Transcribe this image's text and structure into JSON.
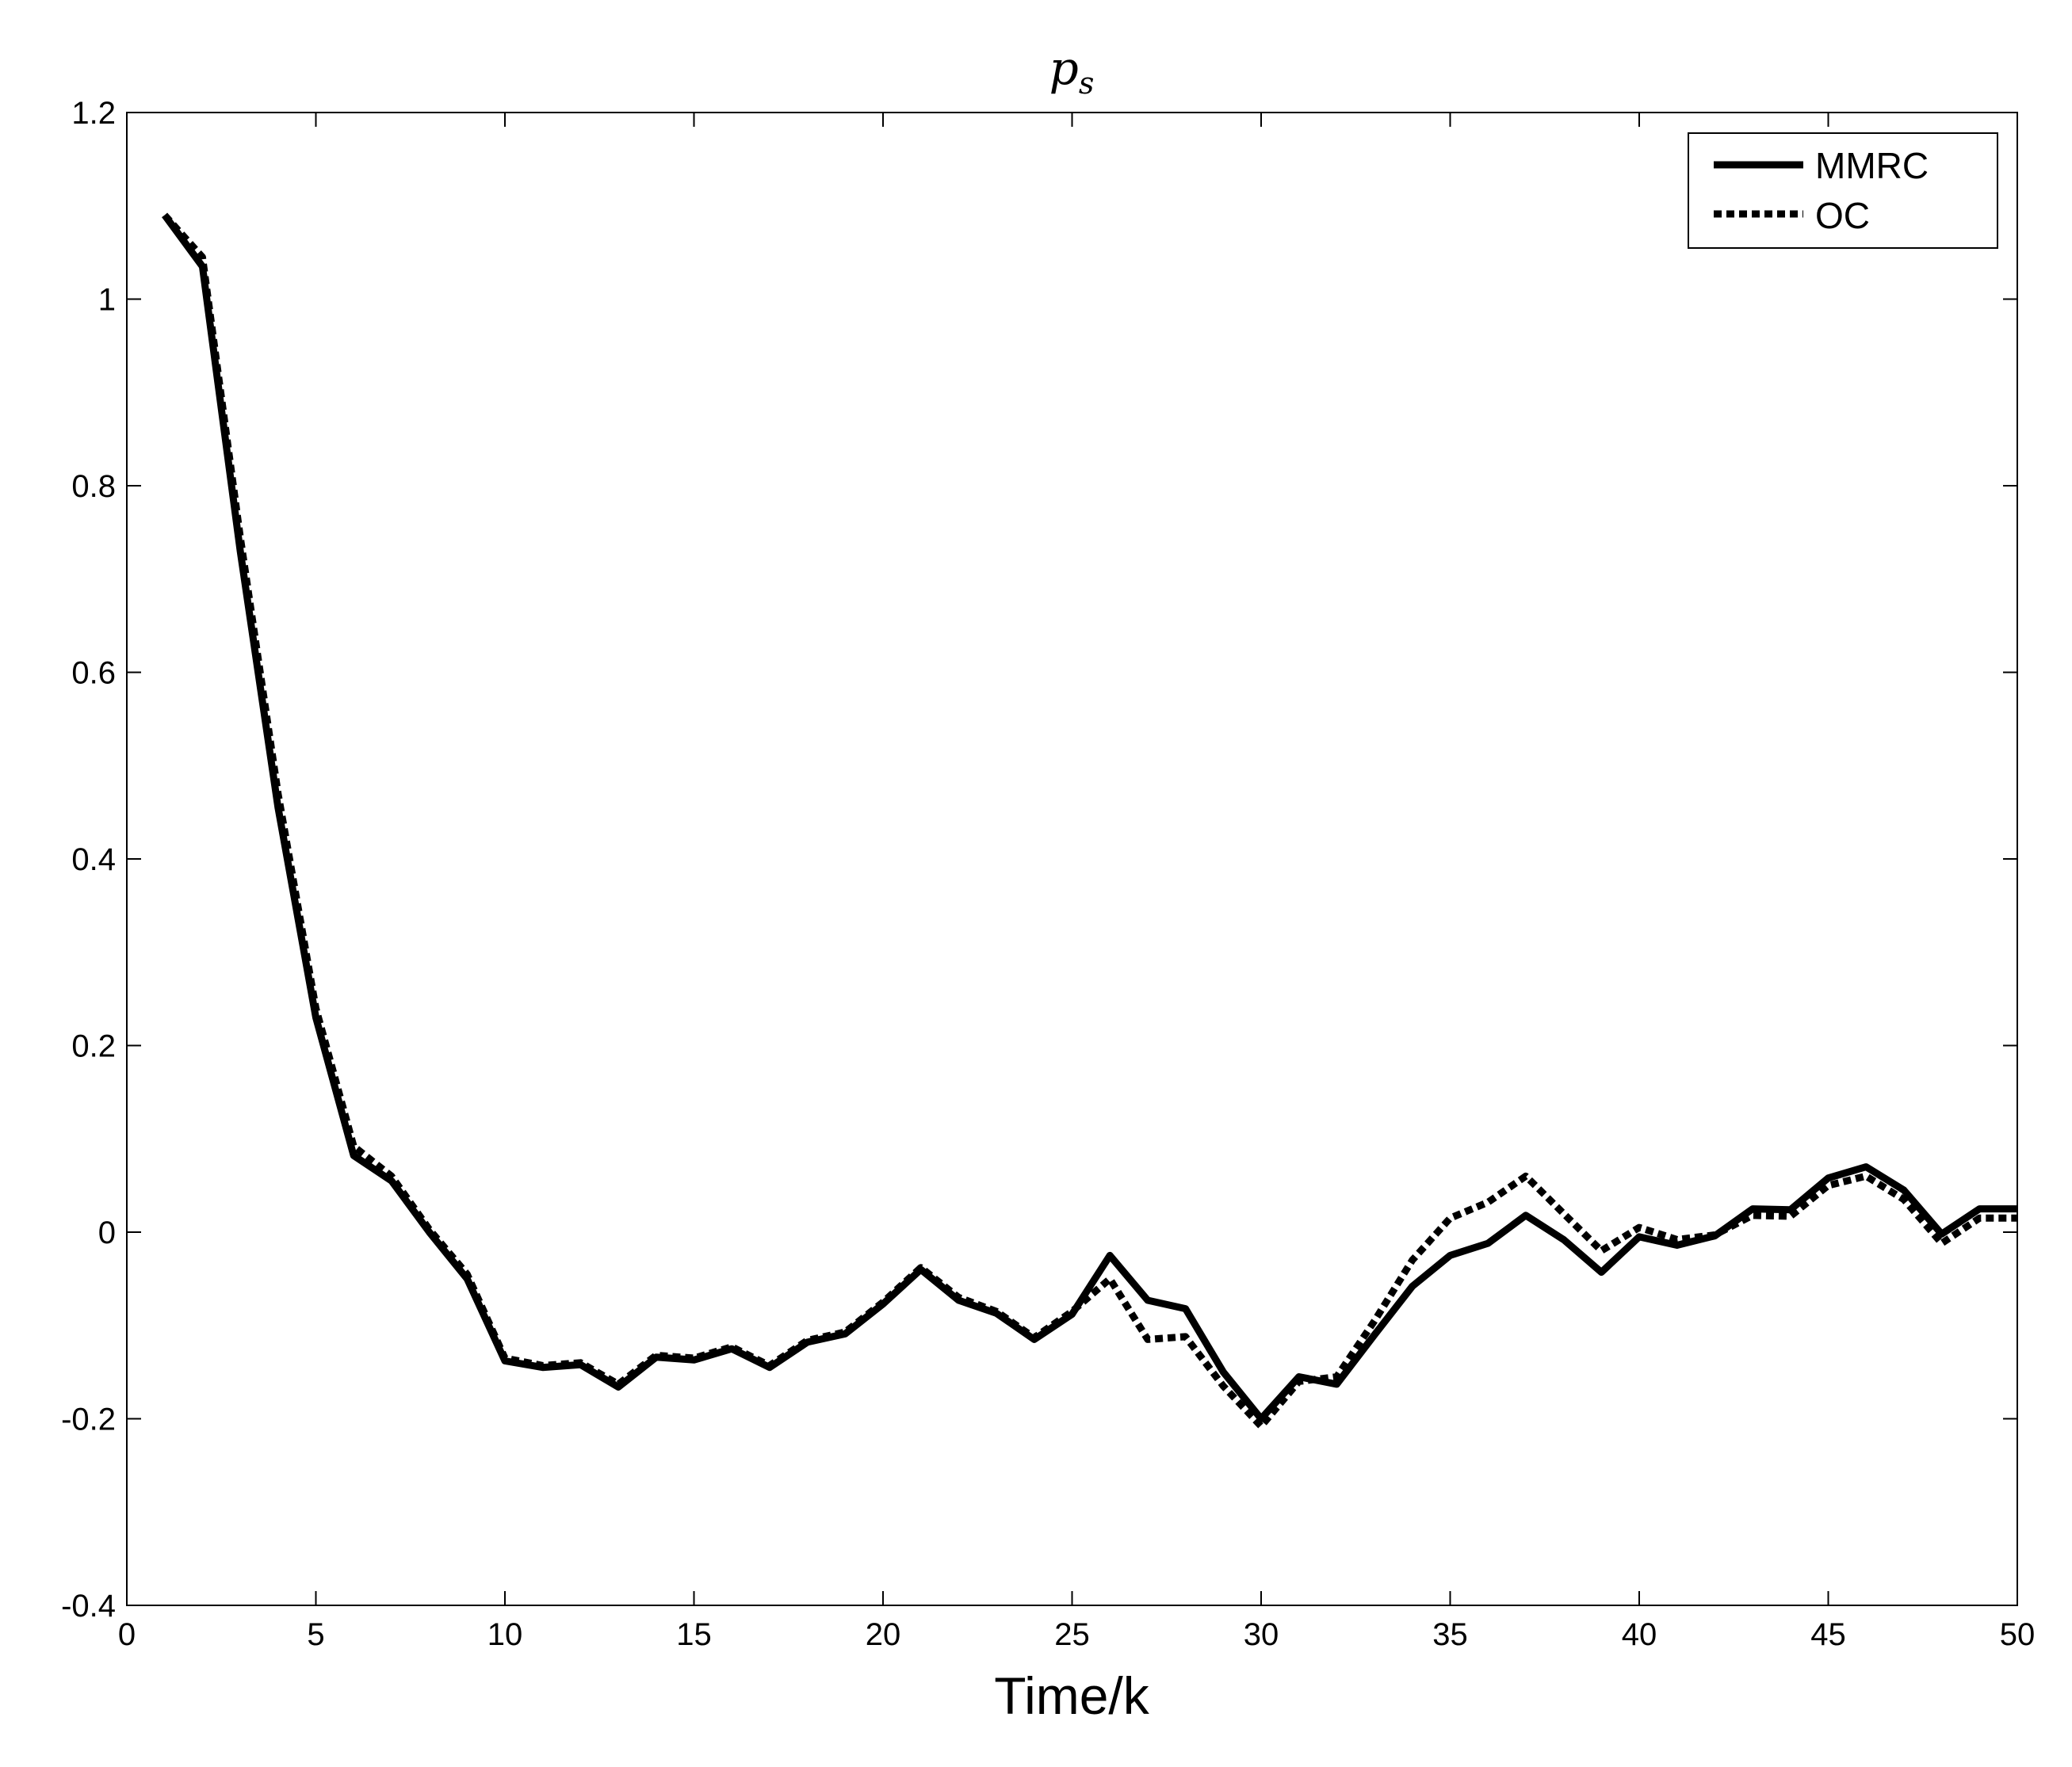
{
  "chart_data": {
    "type": "line",
    "title_main": "p",
    "title_sub": "s",
    "xlabel": "Time/k",
    "ylabel": "",
    "xlim": [
      0,
      50
    ],
    "ylim": [
      -0.4,
      1.2
    ],
    "xticks": [
      0,
      5,
      10,
      15,
      20,
      25,
      30,
      35,
      40,
      45,
      50
    ],
    "yticks": [
      -0.4,
      -0.2,
      0,
      0.2,
      0.4,
      0.6,
      0.8,
      1,
      1.2
    ],
    "xtick_labels": [
      "0",
      "5",
      "10",
      "15",
      "20",
      "25",
      "30",
      "35",
      "40",
      "45",
      "50"
    ],
    "ytick_labels": [
      "-0.4",
      "-0.2",
      "0",
      "0.2",
      "0.4",
      "0.6",
      "0.8",
      "1",
      "1.2"
    ],
    "grid": false,
    "legend_position": "top-right",
    "x": [
      1,
      2,
      3,
      4,
      5,
      6,
      7,
      8,
      9,
      10,
      11,
      12,
      13,
      14,
      15,
      16,
      17,
      18,
      19,
      20,
      21,
      22,
      23,
      24,
      25,
      26,
      27,
      28,
      29,
      30,
      31,
      32,
      33,
      34,
      35,
      36,
      37,
      38,
      39,
      40,
      41,
      42,
      43,
      44,
      45,
      46,
      47,
      48,
      49,
      50
    ],
    "series": [
      {
        "name": "MMRC",
        "style": "solid",
        "color": "#000000",
        "values": [
          1.09,
          1.035,
          0.73,
          0.455,
          0.23,
          0.082,
          0.055,
          0.0,
          -0.05,
          -0.138,
          -0.145,
          -0.142,
          -0.166,
          -0.134,
          -0.137,
          -0.125,
          -0.145,
          -0.118,
          -0.109,
          -0.077,
          -0.04,
          -0.073,
          -0.087,
          -0.115,
          -0.088,
          -0.025,
          -0.073,
          -0.082,
          -0.15,
          -0.2,
          -0.155,
          -0.163,
          -0.11,
          -0.058,
          -0.025,
          -0.012,
          0.018,
          -0.008,
          -0.043,
          -0.005,
          -0.014,
          -0.004,
          0.025,
          0.024,
          0.058,
          0.07,
          0.045,
          -0.002,
          0.025,
          0.025
        ]
      },
      {
        "name": "OC",
        "style": "dotted",
        "color": "#000000",
        "values": [
          1.09,
          1.045,
          0.745,
          0.47,
          0.24,
          0.092,
          0.06,
          0.003,
          -0.045,
          -0.135,
          -0.143,
          -0.14,
          -0.163,
          -0.132,
          -0.135,
          -0.123,
          -0.143,
          -0.116,
          -0.107,
          -0.075,
          -0.038,
          -0.07,
          -0.085,
          -0.113,
          -0.085,
          -0.05,
          -0.115,
          -0.112,
          -0.165,
          -0.208,
          -0.16,
          -0.155,
          -0.095,
          -0.03,
          0.015,
          0.032,
          0.06,
          0.02,
          -0.02,
          0.005,
          -0.008,
          -0.003,
          0.018,
          0.017,
          0.05,
          0.06,
          0.035,
          -0.012,
          0.015,
          0.015
        ]
      }
    ]
  }
}
